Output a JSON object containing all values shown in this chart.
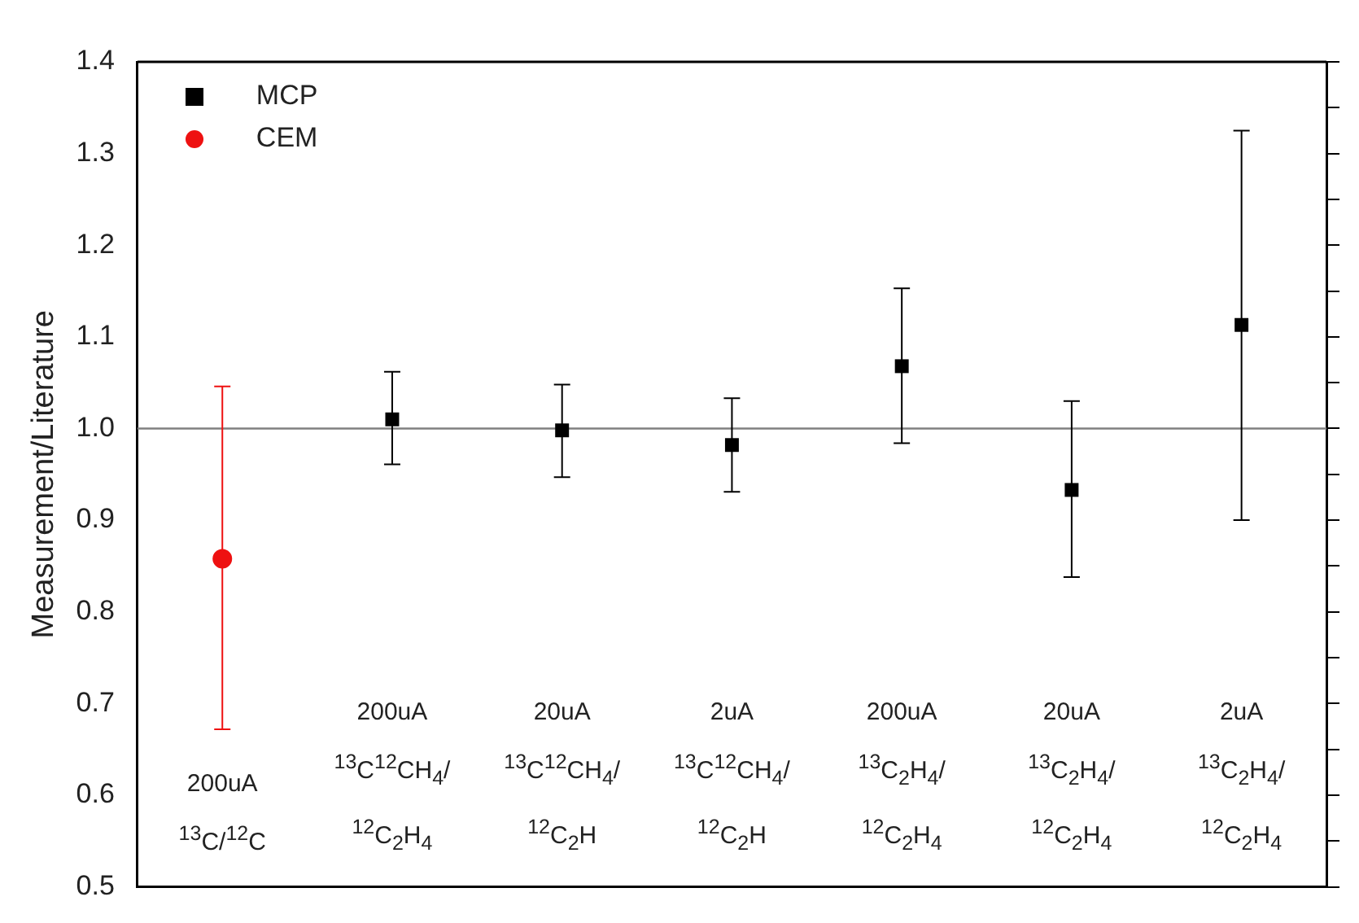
{
  "chart_data": {
    "type": "scatter",
    "ylabel": "Measurement/Literature",
    "categories": [
      "200uA\n$^{13}$C/$^{12}$C",
      "200uA\n$^{13}$C$^{12}$CH$_{4}$/\n$^{12}$C$_{2}$H$_{4}$",
      "20uA\n$^{13}$C$^{12}$CH$_{4}$/\n$^{12}$C$_{2}$H",
      "2uA\n$^{13}$C$^{12}$CH$_{4}$/\n$^{12}$C$_{2}$H",
      "200uA\n$^{13}$C$_{2}$H$_{4}$/\n$^{12}$C$_{2}$H$_{4}$",
      "20uA\n$^{13}$C$_{2}$H$_{4}$/\n$^{12}$C$_{2}$H$_{4}$",
      "2uA\n$^{13}$C$_{2}$H$_{4}$/\n$^{12}$C$_{2}$H$_{4}$"
    ],
    "series": [
      {
        "name": "MCP",
        "color": "#000000",
        "marker": "square",
        "values": [
          null,
          1.01,
          0.998,
          0.982,
          1.068,
          0.933,
          1.113
        ],
        "errors": [
          null,
          [
            0.961,
            1.062
          ],
          [
            0.947,
            1.048
          ],
          [
            0.931,
            1.033
          ],
          [
            0.984,
            1.153
          ],
          [
            0.838,
            1.03
          ],
          [
            0.9,
            1.325
          ]
        ]
      },
      {
        "name": "CEM",
        "color": "#ee1111",
        "marker": "circle",
        "values": [
          0.858,
          null,
          null,
          null,
          null,
          null,
          null
        ],
        "errors": [
          [
            0.672,
            1.046
          ],
          null,
          null,
          null,
          null,
          null,
          null
        ]
      }
    ],
    "ylim": [
      0.5,
      1.4
    ],
    "yticks": [
      0.5,
      {
        "value": 0.55,
        "label": null
      },
      0.6,
      {
        "value": 0.65,
        "label": null
      },
      0.7,
      {
        "value": 0.75,
        "label": null
      },
      0.8,
      {
        "value": 0.85,
        "label": null
      },
      0.9,
      {
        "value": 0.95,
        "label": null
      },
      {
        "value": 1.0,
        "label": "1.0"
      },
      {
        "value": 1.05,
        "label": null
      },
      1.1,
      {
        "value": 1.15,
        "label": null
      },
      1.2,
      {
        "value": 1.25,
        "label": null
      },
      1.3,
      {
        "value": 1.35,
        "label": null
      },
      1.4
    ],
    "ref_lines": [
      {
        "axis": "y",
        "value": 1.0,
        "color": "#808080"
      }
    ],
    "legend": "top left",
    "grid": false
  }
}
